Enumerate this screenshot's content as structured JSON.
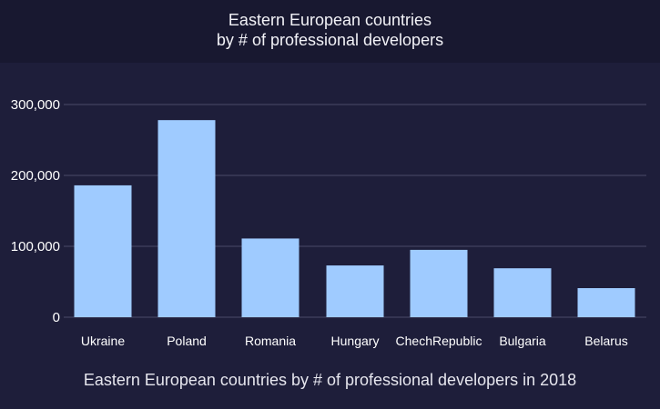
{
  "header": {
    "title_line1": "Eastern European countries",
    "title_line2": "by # of professional developers"
  },
  "caption": "Eastern European countries by # of professional developers in 2018",
  "colors": {
    "background": "#1e1e3a",
    "header_background": "#181830",
    "bar": "#9fcbff",
    "grid": "#4a4a68",
    "text": "#ffffff"
  },
  "chart_data": {
    "type": "bar",
    "title": "Eastern European countries by # of professional developers",
    "categories": [
      "Ukraine",
      "Poland",
      "Romania",
      "Hungary",
      "ChechRepublic",
      "Bulgaria",
      "Belarus"
    ],
    "values": [
      186000,
      278000,
      111000,
      73000,
      95000,
      69000,
      41000
    ],
    "ylim": [
      0,
      300000
    ],
    "yticks": [
      0,
      100000,
      200000,
      300000
    ],
    "ytick_labels": [
      "0",
      "100,000",
      "200,000",
      "300,000"
    ],
    "xlabel": "",
    "ylabel": "",
    "grid": true,
    "legend": "none"
  }
}
